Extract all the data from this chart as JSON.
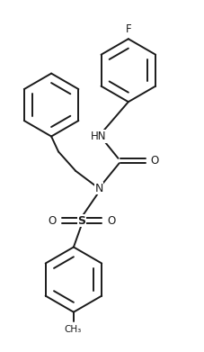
{
  "bg_color": "#ffffff",
  "line_color": "#1a1a1a",
  "line_width": 1.4,
  "fig_width": 2.27,
  "fig_height": 3.91,
  "dpi": 100,
  "xlim": [
    0,
    10
  ],
  "ylim": [
    0,
    17.2
  ]
}
